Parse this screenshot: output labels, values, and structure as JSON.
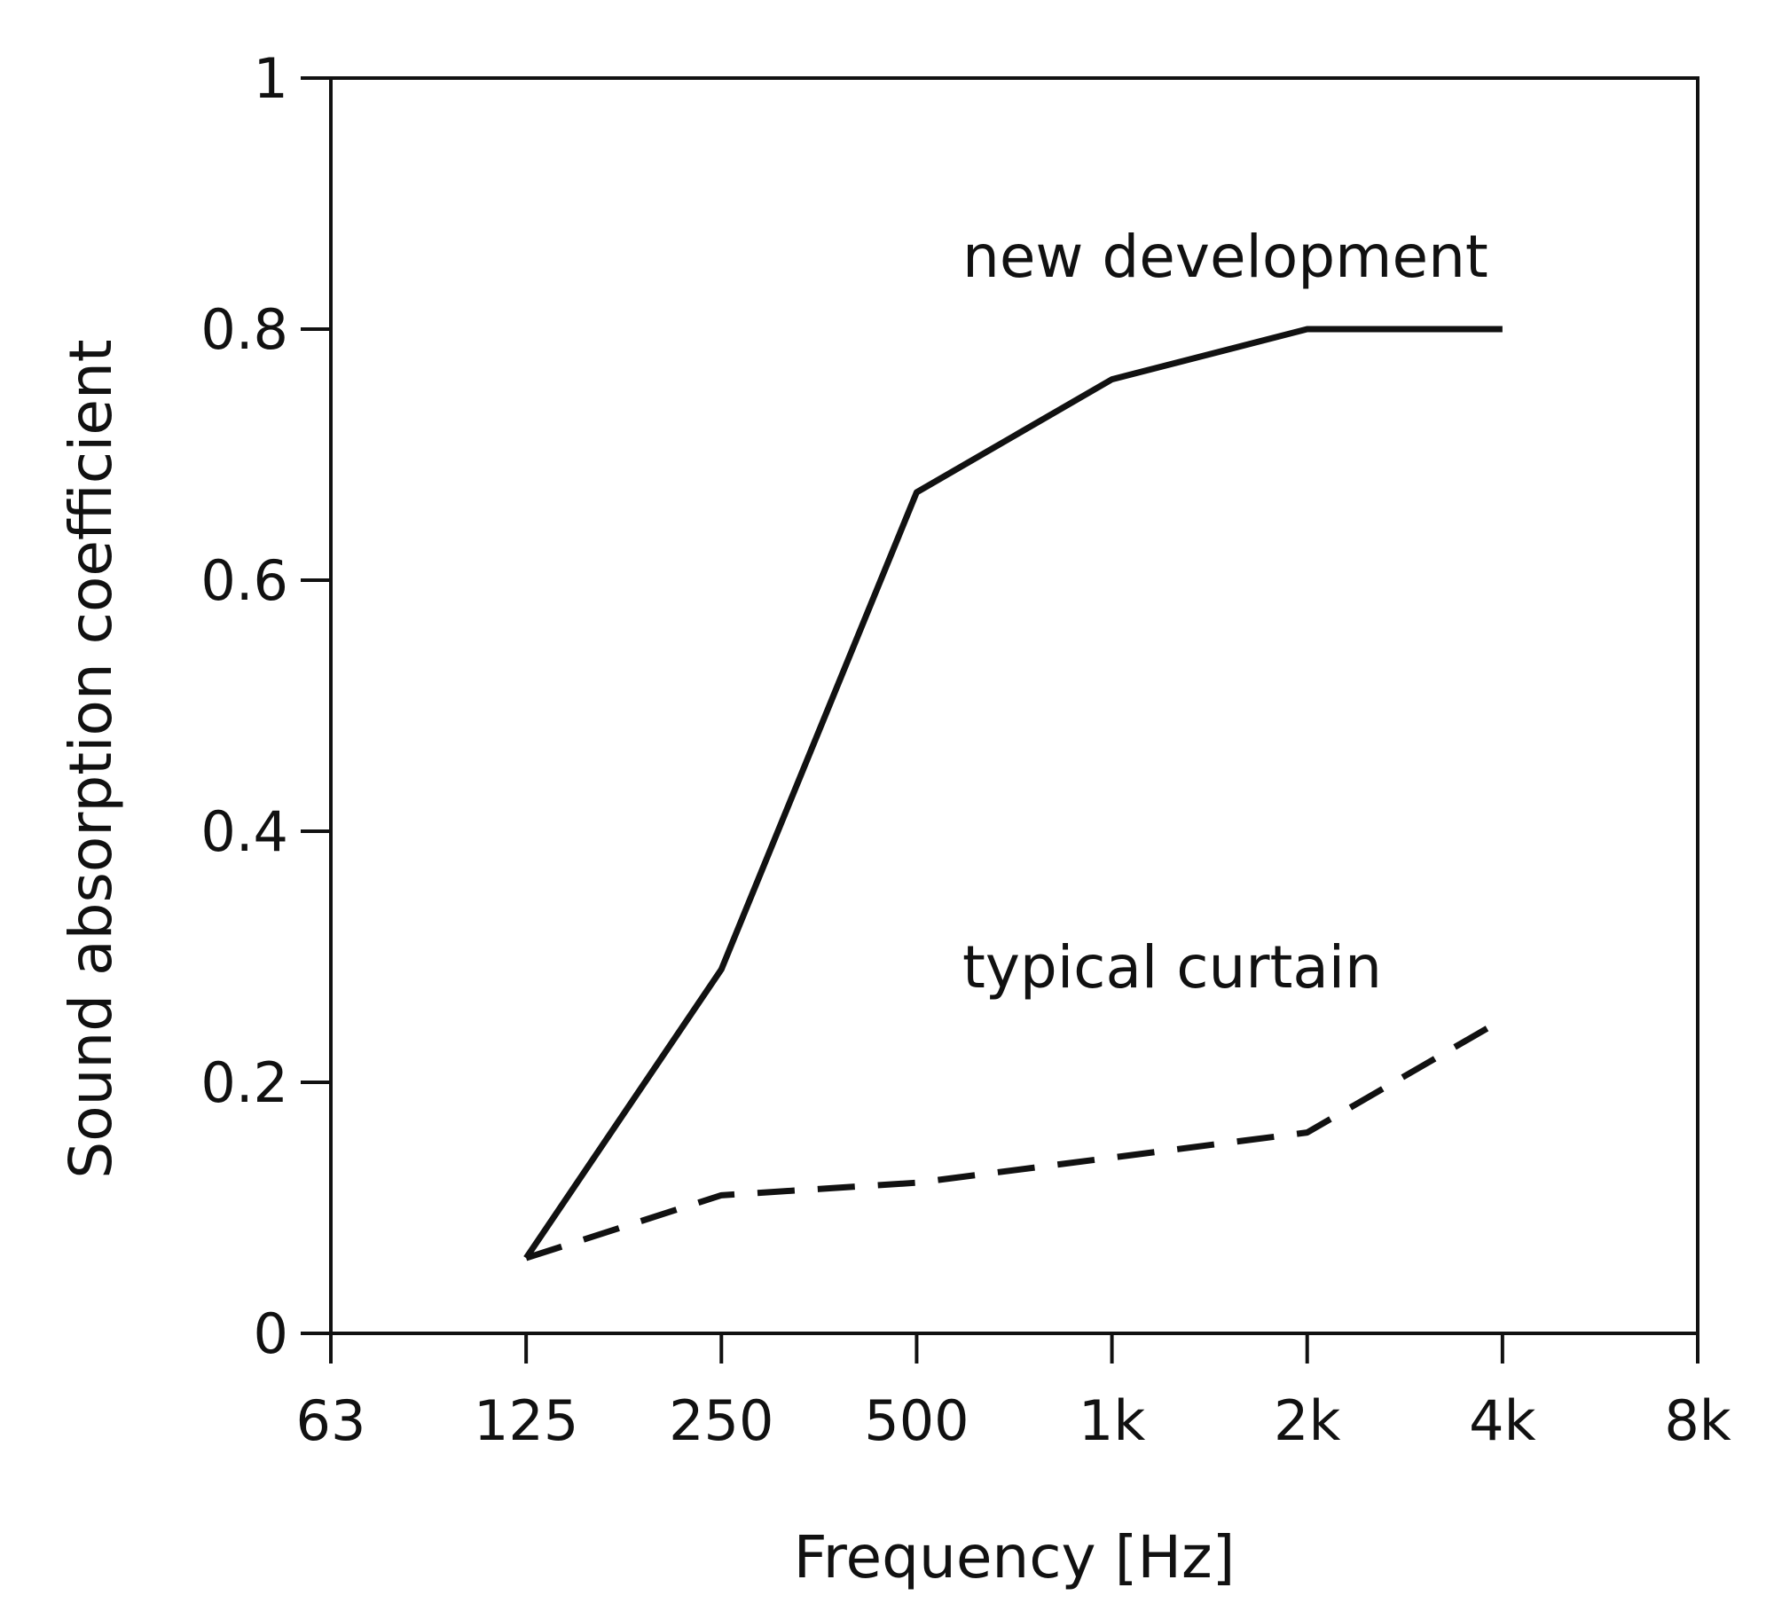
{
  "chart_data": {
    "type": "line",
    "title": "",
    "xlabel": "Frequency [Hz]",
    "ylabel": "Sound absorption coefficient",
    "x_scale": "log2",
    "categories": [
      "63",
      "125",
      "250",
      "500",
      "1k",
      "2k",
      "4k",
      "8k"
    ],
    "x_ticks": [
      "63",
      "125",
      "250",
      "500",
      "1k",
      "2k",
      "4k",
      "8k"
    ],
    "y_ticks": [
      "0",
      "0.2",
      "0.4",
      "0.6",
      "0.8",
      "1"
    ],
    "ylim": [
      0,
      1
    ],
    "grid": false,
    "legend": "none",
    "series": [
      {
        "name": "new development",
        "line_style": "solid",
        "x": [
          "125",
          "250",
          "500",
          "1k",
          "2k",
          "4k"
        ],
        "values": [
          0.06,
          0.29,
          0.67,
          0.76,
          0.8,
          0.8
        ]
      },
      {
        "name": "typical curtain",
        "line_style": "dashed",
        "x": [
          "125",
          "250",
          "500",
          "1k",
          "2k",
          "4k"
        ],
        "values": [
          0.06,
          0.11,
          0.12,
          0.14,
          0.16,
          0.25
        ]
      }
    ],
    "colors": {
      "line": "#111111",
      "axis": "#111111",
      "background": "#ffffff"
    }
  }
}
